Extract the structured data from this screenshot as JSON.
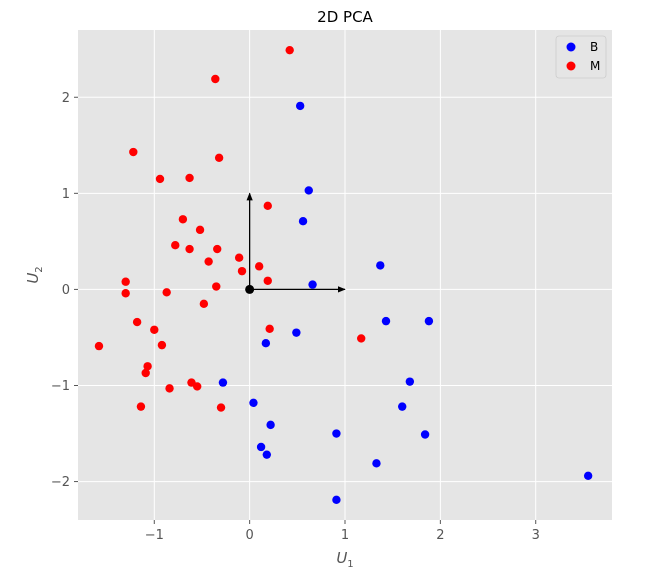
{
  "chart_data": {
    "type": "scatter",
    "title": "2D PCA",
    "xlabel_base": "U",
    "xlabel_sub": "1",
    "ylabel_base": "U",
    "ylabel_sub": "2",
    "xlim": [
      -1.8,
      3.8
    ],
    "ylim": [
      -2.4,
      2.7
    ],
    "xticks": [
      {
        "value": -1,
        "label": "−1"
      },
      {
        "value": 0,
        "label": "0"
      },
      {
        "value": 1,
        "label": "1"
      },
      {
        "value": 2,
        "label": "2"
      },
      {
        "value": 3,
        "label": "3"
      }
    ],
    "yticks": [
      {
        "value": -2,
        "label": "−2"
      },
      {
        "value": -1,
        "label": "−1"
      },
      {
        "value": 0,
        "label": "0"
      },
      {
        "value": 1,
        "label": "1"
      },
      {
        "value": 2,
        "label": "2"
      }
    ],
    "grid": true,
    "legend_position": "top-right",
    "background_color": "#e5e5e5",
    "series": [
      {
        "name": "B",
        "color": "#0000ff",
        "x": [
          0.53,
          0.62,
          0.56,
          1.37,
          0.66,
          1.43,
          1.88,
          0.49,
          0.17,
          -0.28,
          1.68,
          1.6,
          0.04,
          0.22,
          1.84,
          0.91,
          0.12,
          0.18,
          1.33,
          0.91,
          3.55
        ],
        "y": [
          1.91,
          1.03,
          0.71,
          0.25,
          0.05,
          -0.33,
          -0.33,
          -0.45,
          -0.56,
          -0.97,
          -0.96,
          -1.22,
          -1.18,
          -1.41,
          -1.51,
          -1.5,
          -1.64,
          -1.72,
          -1.81,
          -2.19,
          -1.94
        ]
      },
      {
        "name": "M",
        "color": "#ff0000",
        "x": [
          0.42,
          -0.36,
          -1.22,
          -0.32,
          -0.94,
          -0.63,
          0.19,
          -0.7,
          -0.52,
          -0.78,
          -0.63,
          -0.34,
          -0.43,
          -0.11,
          -0.08,
          0.1,
          0.19,
          -1.3,
          -0.35,
          -1.3,
          -0.87,
          -0.48,
          -1.18,
          -1.0,
          0.21,
          1.17,
          -1.58,
          -0.92,
          -1.07,
          -1.09,
          -0.61,
          -0.55,
          -0.84,
          -1.14,
          -0.3
        ],
        "y": [
          2.49,
          2.19,
          1.43,
          1.37,
          1.15,
          1.16,
          0.87,
          0.73,
          0.62,
          0.46,
          0.42,
          0.42,
          0.29,
          0.33,
          0.19,
          0.24,
          0.09,
          0.08,
          0.03,
          -0.04,
          -0.03,
          -0.15,
          -0.34,
          -0.42,
          -0.41,
          -0.51,
          -0.59,
          -0.58,
          -0.8,
          -0.87,
          -0.97,
          -1.01,
          -1.03,
          -1.22,
          -1.23
        ]
      }
    ],
    "arrows": [
      {
        "from": [
          0,
          0
        ],
        "to": [
          1,
          0
        ]
      },
      {
        "from": [
          0,
          0
        ],
        "to": [
          0,
          1
        ]
      }
    ],
    "origin_point": [
      0,
      0
    ]
  }
}
